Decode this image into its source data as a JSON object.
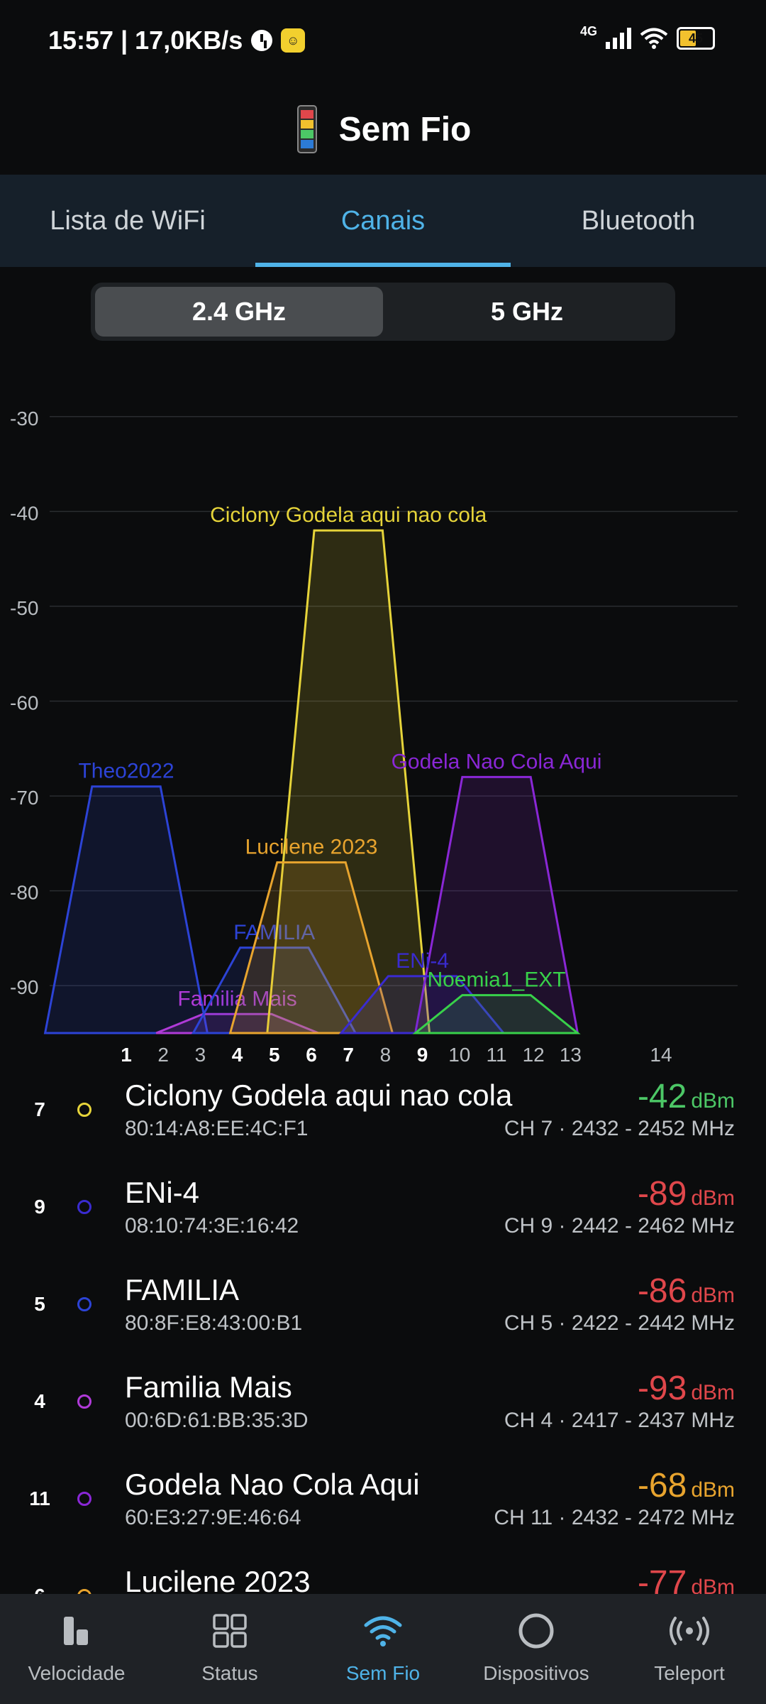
{
  "status_bar": {
    "time": "15:57 | 17,0KB/s",
    "network": "4G",
    "battery": "45"
  },
  "header": {
    "title": "Sem Fio"
  },
  "tabs": [
    {
      "label": "Lista de WiFi",
      "active": false
    },
    {
      "label": "Canais",
      "active": true
    },
    {
      "label": "Bluetooth",
      "active": false
    }
  ],
  "band_toggle": {
    "options": [
      "2.4 GHz",
      "5 GHz"
    ],
    "selected": "2.4 GHz"
  },
  "chart_data": {
    "type": "area",
    "title": "",
    "xlabel": "",
    "ylabel": "",
    "x_ticks": [
      {
        "label": "1",
        "bold": true
      },
      {
        "label": "2",
        "bold": false
      },
      {
        "label": "3",
        "bold": false
      },
      {
        "label": "4",
        "bold": true
      },
      {
        "label": "5",
        "bold": true
      },
      {
        "label": "6",
        "bold": true
      },
      {
        "label": "7",
        "bold": true
      },
      {
        "label": "8",
        "bold": false
      },
      {
        "label": "9",
        "bold": true
      },
      {
        "label": "10",
        "bold": false
      },
      {
        "label": "11",
        "bold": false
      },
      {
        "label": "12",
        "bold": false
      },
      {
        "label": "13",
        "bold": false
      },
      {
        "label": "14",
        "bold": false
      }
    ],
    "y_ticks": [
      "-30",
      "-40",
      "-50",
      "-60",
      "-70",
      "-80",
      "-90"
    ],
    "ylim": [
      -95,
      -25
    ],
    "grid": true,
    "series": [
      {
        "name": "Theo2022",
        "channel": 1,
        "level": -69,
        "color": "#2c43d6"
      },
      {
        "name": "Familia Mais",
        "channel": 4,
        "level": -93,
        "color": "#b03ad8"
      },
      {
        "name": "FAMILIA",
        "channel": 5,
        "level": -86,
        "color": "#2c43d6"
      },
      {
        "name": "Ciclony Godela aqui nao cola",
        "channel": 7,
        "level": -42,
        "color": "#e6d43a"
      },
      {
        "name": "Lucilene 2023",
        "channel": 6,
        "level": -77,
        "color": "#e8a42e"
      },
      {
        "name": "Godela Nao Cola Aqui",
        "channel": 11,
        "level": -68,
        "color": "#8a27d6"
      },
      {
        "name": "ENi-4",
        "channel": 9,
        "level": -89,
        "color": "#3a2bd0"
      },
      {
        "name": "Noemia1_EXT",
        "channel": 11,
        "level": -91,
        "color": "#38d14a"
      }
    ]
  },
  "networks": [
    {
      "channel": "7",
      "ssid": "Ciclony Godela aqui nao cola",
      "bssid": "80:14:A8:EE:4C:F1",
      "dbm": "-42",
      "unit": "dBm",
      "freq": "CH 7 · 2432 - 2452 MHz",
      "dot_color": "#e6d43a",
      "dbm_color": "#4cc766"
    },
    {
      "channel": "9",
      "ssid": "ENi-4",
      "bssid": "08:10:74:3E:16:42",
      "dbm": "-89",
      "unit": "dBm",
      "freq": "CH 9 · 2442 - 2462 MHz",
      "dot_color": "#3a2bd0",
      "dbm_color": "#e0474b"
    },
    {
      "channel": "5",
      "ssid": "FAMILIA",
      "bssid": "80:8F:E8:43:00:B1",
      "dbm": "-86",
      "unit": "dBm",
      "freq": "CH 5 · 2422 - 2442 MHz",
      "dot_color": "#2c43d6",
      "dbm_color": "#e0474b"
    },
    {
      "channel": "4",
      "ssid": "Familia Mais",
      "bssid": "00:6D:61:BB:35:3D",
      "dbm": "-93",
      "unit": "dBm",
      "freq": "CH 4 · 2417 - 2437 MHz",
      "dot_color": "#b03ad8",
      "dbm_color": "#e0474b"
    },
    {
      "channel": "11",
      "ssid": "Godela Nao Cola Aqui",
      "bssid": "60:E3:27:9E:46:64",
      "dbm": "-68",
      "unit": "dBm",
      "freq": "CH 11 · 2432 - 2472 MHz",
      "dot_color": "#8a27d6",
      "dbm_color": "#e8a42e"
    },
    {
      "channel": "6",
      "ssid": "Lucilene 2023",
      "bssid": "",
      "dbm": "-77",
      "unit": "dBm",
      "freq": "",
      "dot_color": "#e8a42e",
      "dbm_color": "#e0474b"
    }
  ],
  "bottom_nav": [
    {
      "label": "Velocidade",
      "icon": "speed-icon",
      "active": false
    },
    {
      "label": "Status",
      "icon": "grid-icon",
      "active": false
    },
    {
      "label": "Sem Fio",
      "icon": "wifi-icon",
      "active": true
    },
    {
      "label": "Dispositivos",
      "icon": "devices-icon",
      "active": false
    },
    {
      "label": "Teleport",
      "icon": "teleport-icon",
      "active": false
    }
  ]
}
